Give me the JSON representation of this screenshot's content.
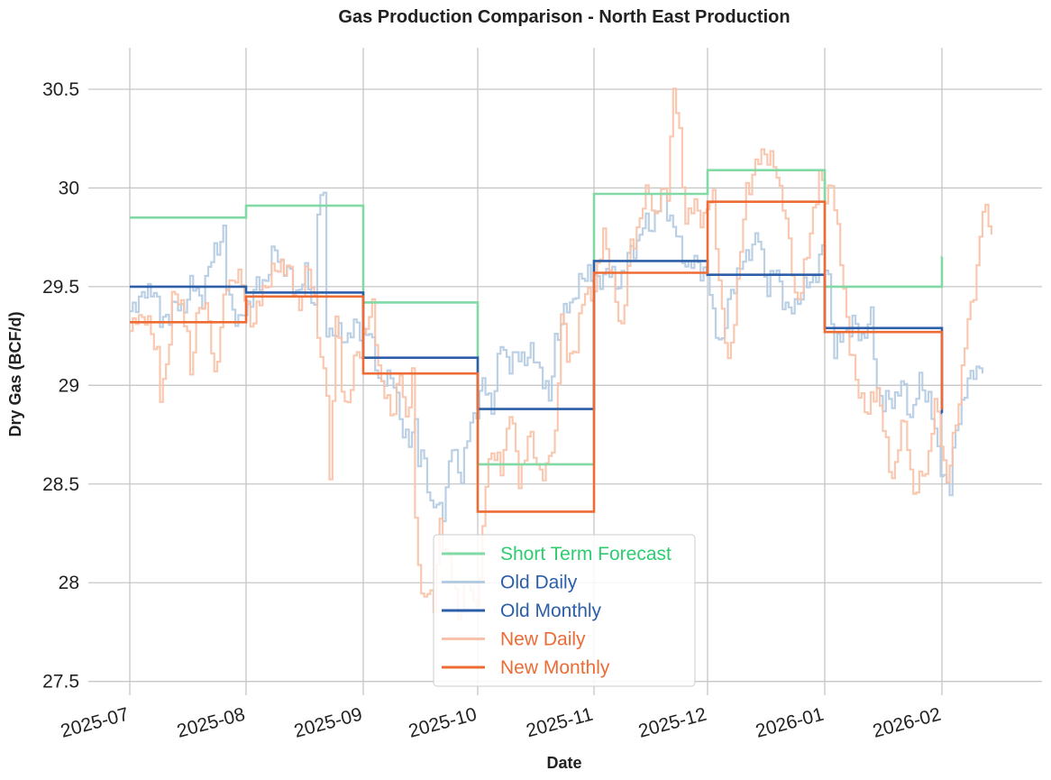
{
  "chart_data": {
    "type": "line",
    "title": "Gas Production Comparison - North East Production",
    "xlabel": "Date",
    "ylabel": "Dry Gas (BCF/d)",
    "ylim": [
      27.43,
      30.71
    ],
    "yticks": [
      27.5,
      28,
      28.5,
      29,
      29.5,
      30,
      30.5
    ],
    "ytick_labels": [
      "27.5",
      "28",
      "28.5",
      "29",
      "29.5",
      "30",
      "30.5"
    ],
    "xticks": [
      "2025-07",
      "2025-08",
      "2025-09",
      "2025-10",
      "2025-11",
      "2025-12",
      "2026-01",
      "2026-02"
    ],
    "grid": true,
    "legend_position": "lower-center",
    "series": [
      {
        "name": "Short Term Forecast",
        "color": "#82d9a5",
        "legend_text_color": "#2ecc71",
        "style": "monthly-step",
        "values": [
          29.85,
          29.91,
          29.42,
          28.6,
          29.97,
          30.09,
          29.5,
          29.65
        ]
      },
      {
        "name": "Old Daily",
        "color": "#b4cbe2",
        "legend_text_color": "#2c5fa8",
        "style": "daily-step",
        "anchors": [
          [
            0,
            29.35
          ],
          [
            2,
            29.44
          ],
          [
            5,
            29.45
          ],
          [
            8,
            29.51
          ],
          [
            10,
            29.3
          ],
          [
            14,
            29.4
          ],
          [
            17,
            29.38
          ],
          [
            20,
            29.5
          ],
          [
            24,
            29.45
          ],
          [
            28,
            29.7
          ],
          [
            31,
            29.75
          ],
          [
            32,
            29.5
          ],
          [
            36,
            29.3
          ],
          [
            40,
            29.45
          ],
          [
            45,
            29.55
          ],
          [
            48,
            29.68
          ],
          [
            51,
            29.6
          ],
          [
            55,
            29.48
          ],
          [
            58,
            29.55
          ],
          [
            61,
            29.4
          ],
          [
            62,
            29.9
          ],
          [
            64,
            29.94
          ],
          [
            65,
            29.3
          ],
          [
            68,
            29.25
          ],
          [
            72,
            29.25
          ],
          [
            75,
            29.3
          ],
          [
            79,
            29.25
          ],
          [
            83,
            29.0
          ],
          [
            87,
            29.05
          ],
          [
            90,
            28.72
          ],
          [
            92,
            28.75
          ],
          [
            94,
            28.8
          ],
          [
            95,
            28.6
          ],
          [
            97,
            28.65
          ],
          [
            99,
            28.38
          ],
          [
            103,
            28.38
          ],
          [
            106,
            28.68
          ],
          [
            109,
            28.55
          ],
          [
            112,
            28.8
          ],
          [
            116,
            29.0
          ],
          [
            119,
            28.9
          ],
          [
            122,
            29.2
          ],
          [
            125,
            29.12
          ],
          [
            129,
            29.15
          ],
          [
            132,
            29.15
          ],
          [
            135,
            29.1
          ],
          [
            138,
            28.9
          ],
          [
            140,
            29.25
          ],
          [
            142,
            29.3
          ],
          [
            144,
            29.4
          ],
          [
            148,
            29.5
          ],
          [
            151,
            29.6
          ],
          [
            154,
            29.5
          ],
          [
            157,
            29.6
          ],
          [
            160,
            29.5
          ],
          [
            163,
            29.6
          ],
          [
            166,
            29.7
          ],
          [
            169,
            29.8
          ],
          [
            172,
            29.82
          ],
          [
            174,
            29.9
          ],
          [
            176,
            29.95
          ],
          [
            178,
            29.85
          ],
          [
            181,
            29.7
          ],
          [
            184,
            29.6
          ],
          [
            187,
            29.62
          ],
          [
            190,
            29.55
          ],
          [
            192,
            29.35
          ],
          [
            195,
            29.2
          ],
          [
            198,
            29.5
          ],
          [
            201,
            29.58
          ],
          [
            204,
            29.7
          ],
          [
            207,
            29.74
          ],
          [
            210,
            29.5
          ],
          [
            213,
            29.58
          ],
          [
            215,
            29.45
          ],
          [
            217,
            29.35
          ],
          [
            220,
            29.45
          ],
          [
            223,
            29.5
          ],
          [
            226,
            29.58
          ],
          [
            228,
            29.67
          ],
          [
            230,
            29.55
          ],
          [
            232,
            29.15
          ],
          [
            235,
            29.28
          ],
          [
            238,
            29.3
          ],
          [
            241,
            29.25
          ],
          [
            244,
            29.33
          ],
          [
            246,
            29.0
          ],
          [
            248,
            28.9
          ],
          [
            251,
            28.93
          ],
          [
            254,
            29.0
          ],
          [
            257,
            28.85
          ],
          [
            260,
            29.0
          ],
          [
            263,
            28.95
          ],
          [
            266,
            28.65
          ],
          [
            268,
            28.55
          ],
          [
            270,
            28.45
          ],
          [
            272,
            28.8
          ],
          [
            275,
            28.95
          ],
          [
            278,
            29.1
          ],
          [
            281,
            29.06
          ]
        ]
      },
      {
        "name": "Old Monthly",
        "color": "#2c5fa8",
        "legend_text_color": "#2c5fa8",
        "style": "monthly-step",
        "values": [
          29.5,
          29.47,
          29.14,
          28.88,
          29.63,
          29.56,
          29.29,
          28.86
        ]
      },
      {
        "name": "New Daily",
        "color": "#f8c2a8",
        "legend_text_color": "#ed6c35",
        "style": "daily-step",
        "anchors": [
          [
            0,
            29.25
          ],
          [
            2,
            29.38
          ],
          [
            4,
            29.32
          ],
          [
            7,
            29.3
          ],
          [
            9,
            29.15
          ],
          [
            10,
            28.92
          ],
          [
            12,
            29.1
          ],
          [
            14,
            29.45
          ],
          [
            17,
            29.4
          ],
          [
            19,
            29.3
          ],
          [
            20,
            29.0
          ],
          [
            22,
            29.35
          ],
          [
            24,
            29.45
          ],
          [
            26,
            29.3
          ],
          [
            28,
            29.05
          ],
          [
            30,
            29.3
          ],
          [
            32,
            29.5
          ],
          [
            35,
            29.57
          ],
          [
            38,
            29.45
          ],
          [
            41,
            29.3
          ],
          [
            44,
            29.5
          ],
          [
            47,
            29.55
          ],
          [
            50,
            29.63
          ],
          [
            53,
            29.55
          ],
          [
            56,
            29.4
          ],
          [
            59,
            29.6
          ],
          [
            61,
            29.45
          ],
          [
            63,
            29.1
          ],
          [
            65,
            29.0
          ],
          [
            66,
            28.52
          ],
          [
            68,
            29.35
          ],
          [
            70,
            29.0
          ],
          [
            72,
            28.9
          ],
          [
            74,
            29.1
          ],
          [
            77,
            29.25
          ],
          [
            80,
            29.38
          ],
          [
            83,
            29.0
          ],
          [
            86,
            28.85
          ],
          [
            89,
            29.05
          ],
          [
            91,
            28.8
          ],
          [
            93,
            29.1
          ],
          [
            94,
            28.3
          ],
          [
            96,
            27.9
          ],
          [
            98,
            28.0
          ],
          [
            100,
            27.85
          ],
          [
            102,
            28.3
          ],
          [
            105,
            28.1
          ],
          [
            108,
            27.85
          ],
          [
            111,
            28.0
          ],
          [
            113,
            27.9
          ],
          [
            115,
            28.0
          ],
          [
            117,
            28.5
          ],
          [
            119,
            28.7
          ],
          [
            122,
            28.55
          ],
          [
            125,
            28.9
          ],
          [
            128,
            28.5
          ],
          [
            131,
            28.75
          ],
          [
            134,
            28.6
          ],
          [
            137,
            28.55
          ],
          [
            140,
            28.76
          ],
          [
            142,
            29.35
          ],
          [
            144,
            29.15
          ],
          [
            147,
            29.2
          ],
          [
            150,
            29.5
          ],
          [
            153,
            29.45
          ],
          [
            156,
            29.8
          ],
          [
            159,
            29.5
          ],
          [
            162,
            29.3
          ],
          [
            165,
            29.7
          ],
          [
            168,
            29.85
          ],
          [
            171,
            30.0
          ],
          [
            173,
            29.85
          ],
          [
            175,
            29.95
          ],
          [
            177,
            30.0
          ],
          [
            179,
            30.5
          ],
          [
            181,
            30.25
          ],
          [
            183,
            29.85
          ],
          [
            186,
            29.9
          ],
          [
            189,
            29.85
          ],
          [
            192,
            29.95
          ],
          [
            195,
            29.35
          ],
          [
            197,
            29.1
          ],
          [
            200,
            29.5
          ],
          [
            203,
            30.0
          ],
          [
            206,
            30.1
          ],
          [
            209,
            30.2
          ],
          [
            212,
            30.1
          ],
          [
            215,
            29.95
          ],
          [
            217,
            29.7
          ],
          [
            219,
            29.45
          ],
          [
            221,
            29.5
          ],
          [
            223,
            29.65
          ],
          [
            225,
            29.9
          ],
          [
            227,
            30.05
          ],
          [
            229,
            29.95
          ],
          [
            231,
            30.05
          ],
          [
            233,
            29.75
          ],
          [
            235,
            29.5
          ],
          [
            237,
            29.2
          ],
          [
            239,
            29.0
          ],
          [
            241,
            28.95
          ],
          [
            243,
            28.85
          ],
          [
            246,
            29.0
          ],
          [
            248,
            28.8
          ],
          [
            250,
            28.55
          ],
          [
            252,
            28.6
          ],
          [
            254,
            28.8
          ],
          [
            256,
            28.72
          ],
          [
            258,
            28.45
          ],
          [
            260,
            28.5
          ],
          [
            263,
            28.65
          ],
          [
            265,
            28.9
          ],
          [
            267,
            28.75
          ],
          [
            269,
            28.5
          ],
          [
            271,
            28.7
          ],
          [
            273,
            28.95
          ],
          [
            275,
            29.2
          ],
          [
            277,
            29.4
          ],
          [
            279,
            29.6
          ],
          [
            281,
            29.88
          ],
          [
            283,
            29.85
          ],
          [
            284,
            29.8
          ]
        ]
      },
      {
        "name": "New Monthly",
        "color": "#ed6c35",
        "legend_text_color": "#ed6c35",
        "style": "monthly-step",
        "values": [
          29.32,
          29.45,
          29.06,
          28.36,
          29.57,
          29.93,
          29.27,
          28.88
        ]
      }
    ]
  }
}
